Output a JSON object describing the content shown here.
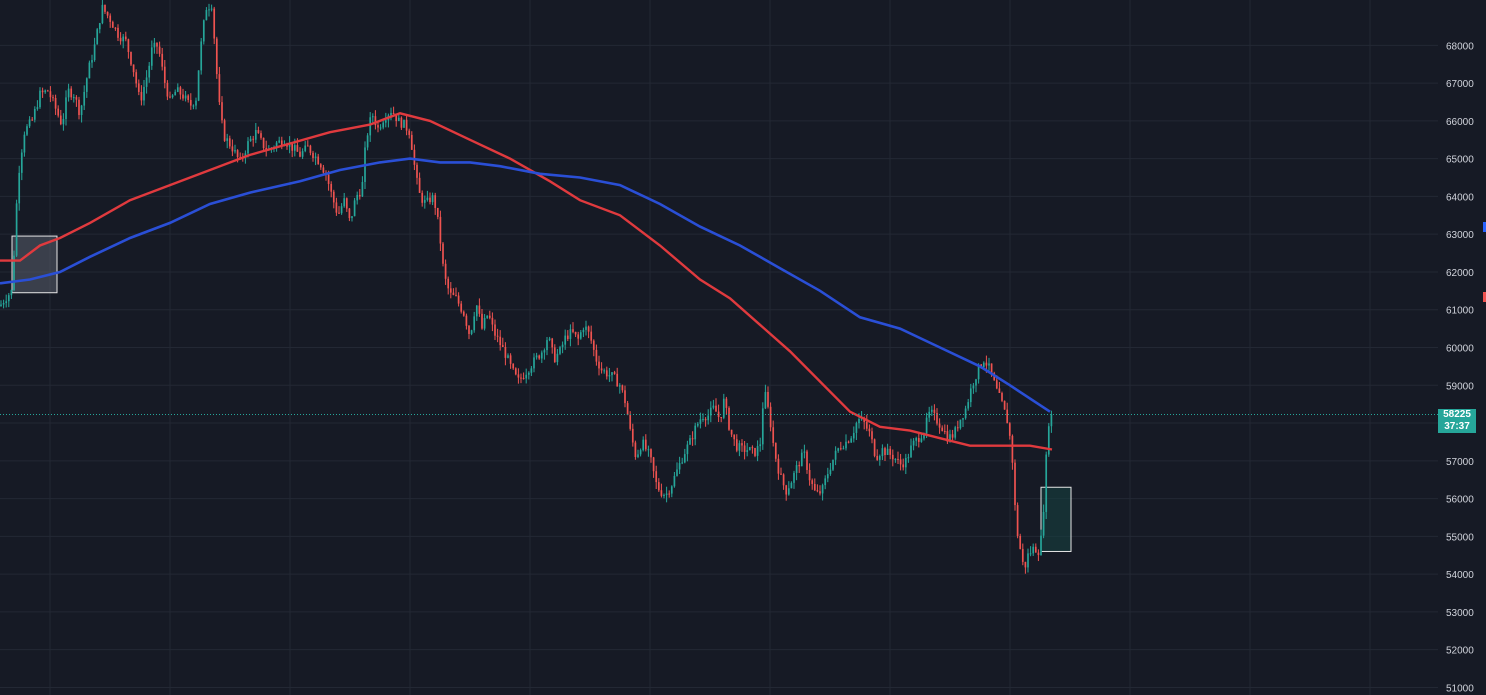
{
  "colors": {
    "background": "#161a25",
    "grid": "#232834",
    "axis_text": "#d1d4dc",
    "candle_up": "#26a69a",
    "candle_down": "#ef5350",
    "ma_fast": "#e03a3e",
    "ma_slow": "#2a4fd6",
    "crosshair": "#26a69a",
    "label_bg": "#26a69a",
    "box_left_fill": "#5a5f6c",
    "box_right_fill": "#17403f",
    "marker_blue": "#2962ff",
    "marker_red": "#ef5350"
  },
  "price_label": {
    "price": "58225",
    "countdown": "37:37"
  },
  "chart_data": {
    "type": "candlestick",
    "ylim": [
      50800,
      69200
    ],
    "y_ticks": [
      "51000",
      "52000",
      "53000",
      "54000",
      "55000",
      "56000",
      "57000",
      "58000",
      "59000",
      "60000",
      "61000",
      "62000",
      "63000",
      "64000",
      "65000",
      "66000",
      "67000",
      "68000"
    ],
    "last_price": 58225,
    "price_path": [
      [
        0,
        61100
      ],
      [
        5,
        61300
      ],
      [
        12,
        61500
      ],
      [
        18,
        64500
      ],
      [
        24,
        65700
      ],
      [
        32,
        66000
      ],
      [
        40,
        66700
      ],
      [
        48,
        66800
      ],
      [
        56,
        66300
      ],
      [
        62,
        65900
      ],
      [
        68,
        66800
      ],
      [
        74,
        66700
      ],
      [
        80,
        66200
      ],
      [
        88,
        67300
      ],
      [
        94,
        67900
      ],
      [
        102,
        69000
      ],
      [
        110,
        68700
      ],
      [
        118,
        68300
      ],
      [
        126,
        68100
      ],
      [
        134,
        67300
      ],
      [
        140,
        66500
      ],
      [
        148,
        67300
      ],
      [
        152,
        67900
      ],
      [
        158,
        68000
      ],
      [
        164,
        67100
      ],
      [
        170,
        66500
      ],
      [
        176,
        66800
      ],
      [
        182,
        66700
      ],
      [
        190,
        66400
      ],
      [
        196,
        66600
      ],
      [
        200,
        67800
      ],
      [
        206,
        69000
      ],
      [
        212,
        69100
      ],
      [
        216,
        67500
      ],
      [
        220,
        66200
      ],
      [
        224,
        65600
      ],
      [
        232,
        65300
      ],
      [
        240,
        64900
      ],
      [
        248,
        65400
      ],
      [
        256,
        65700
      ],
      [
        262,
        65400
      ],
      [
        268,
        65200
      ],
      [
        276,
        65400
      ],
      [
        284,
        65500
      ],
      [
        292,
        65300
      ],
      [
        300,
        65100
      ],
      [
        308,
        65300
      ],
      [
        314,
        65100
      ],
      [
        320,
        64900
      ],
      [
        326,
        64600
      ],
      [
        332,
        64000
      ],
      [
        338,
        63500
      ],
      [
        344,
        63900
      ],
      [
        350,
        63300
      ],
      [
        356,
        64000
      ],
      [
        362,
        64200
      ],
      [
        366,
        65500
      ],
      [
        372,
        66200
      ],
      [
        378,
        65800
      ],
      [
        384,
        66100
      ],
      [
        392,
        66300
      ],
      [
        398,
        66000
      ],
      [
        404,
        65900
      ],
      [
        410,
        65700
      ],
      [
        416,
        64500
      ],
      [
        420,
        64000
      ],
      [
        426,
        63800
      ],
      [
        432,
        64000
      ],
      [
        436,
        63700
      ],
      [
        440,
        62900
      ],
      [
        444,
        61900
      ],
      [
        450,
        61400
      ],
      [
        456,
        61300
      ],
      [
        464,
        60900
      ],
      [
        470,
        60300
      ],
      [
        476,
        61200
      ],
      [
        482,
        60500
      ],
      [
        488,
        60900
      ],
      [
        494,
        60400
      ],
      [
        500,
        60100
      ],
      [
        506,
        59800
      ],
      [
        512,
        59400
      ],
      [
        518,
        59100
      ],
      [
        524,
        59300
      ],
      [
        530,
        59500
      ],
      [
        536,
        59700
      ],
      [
        542,
        59900
      ],
      [
        548,
        60300
      ],
      [
        554,
        59700
      ],
      [
        560,
        59900
      ],
      [
        566,
        60300
      ],
      [
        572,
        60400
      ],
      [
        578,
        60200
      ],
      [
        584,
        60600
      ],
      [
        590,
        60300
      ],
      [
        596,
        59700
      ],
      [
        602,
        59400
      ],
      [
        608,
        59300
      ],
      [
        614,
        59200
      ],
      [
        620,
        59000
      ],
      [
        626,
        58500
      ],
      [
        630,
        57800
      ],
      [
        636,
        57100
      ],
      [
        642,
        57500
      ],
      [
        646,
        57300
      ],
      [
        650,
        57100
      ],
      [
        656,
        56400
      ],
      [
        660,
        56200
      ],
      [
        666,
        56100
      ],
      [
        672,
        56400
      ],
      [
        678,
        56800
      ],
      [
        684,
        57200
      ],
      [
        690,
        57500
      ],
      [
        696,
        57900
      ],
      [
        702,
        58200
      ],
      [
        708,
        58200
      ],
      [
        714,
        58400
      ],
      [
        720,
        58100
      ],
      [
        724,
        58600
      ],
      [
        730,
        57800
      ],
      [
        736,
        57400
      ],
      [
        742,
        57300
      ],
      [
        748,
        57300
      ],
      [
        754,
        57200
      ],
      [
        760,
        57400
      ],
      [
        764,
        58900
      ],
      [
        770,
        58100
      ],
      [
        774,
        57300
      ],
      [
        780,
        56600
      ],
      [
        786,
        56200
      ],
      [
        792,
        56500
      ],
      [
        798,
        56900
      ],
      [
        804,
        57200
      ],
      [
        810,
        56500
      ],
      [
        816,
        56100
      ],
      [
        822,
        56200
      ],
      [
        828,
        56700
      ],
      [
        834,
        57100
      ],
      [
        840,
        57400
      ],
      [
        846,
        57500
      ],
      [
        852,
        57700
      ],
      [
        858,
        58100
      ],
      [
        864,
        58000
      ],
      [
        870,
        57700
      ],
      [
        876,
        57100
      ],
      [
        882,
        57300
      ],
      [
        888,
        57200
      ],
      [
        894,
        57100
      ],
      [
        900,
        56900
      ],
      [
        906,
        57000
      ],
      [
        912,
        57400
      ],
      [
        918,
        57600
      ],
      [
        924,
        57800
      ],
      [
        930,
        58300
      ],
      [
        936,
        58100
      ],
      [
        942,
        57900
      ],
      [
        948,
        57600
      ],
      [
        954,
        57700
      ],
      [
        960,
        58100
      ],
      [
        966,
        58400
      ],
      [
        972,
        59000
      ],
      [
        978,
        59400
      ],
      [
        984,
        59700
      ],
      [
        990,
        59400
      ],
      [
        996,
        58900
      ],
      [
        1002,
        58500
      ],
      [
        1008,
        58000
      ],
      [
        1012,
        57200
      ],
      [
        1016,
        55300
      ],
      [
        1020,
        54700
      ],
      [
        1024,
        54100
      ],
      [
        1028,
        54500
      ],
      [
        1034,
        54700
      ],
      [
        1040,
        54600
      ],
      [
        1044,
        55900
      ],
      [
        1048,
        58000
      ],
      [
        1052,
        58225
      ]
    ],
    "ma_fast": [
      [
        0,
        62300
      ],
      [
        20,
        62300
      ],
      [
        40,
        62700
      ],
      [
        60,
        62900
      ],
      [
        90,
        63300
      ],
      [
        130,
        63900
      ],
      [
        170,
        64300
      ],
      [
        210,
        64700
      ],
      [
        250,
        65100
      ],
      [
        290,
        65400
      ],
      [
        330,
        65700
      ],
      [
        370,
        65900
      ],
      [
        400,
        66200
      ],
      [
        430,
        66000
      ],
      [
        470,
        65500
      ],
      [
        510,
        65000
      ],
      [
        550,
        64400
      ],
      [
        580,
        63900
      ],
      [
        620,
        63500
      ],
      [
        660,
        62700
      ],
      [
        700,
        61800
      ],
      [
        730,
        61300
      ],
      [
        760,
        60600
      ],
      [
        790,
        59900
      ],
      [
        820,
        59100
      ],
      [
        850,
        58300
      ],
      [
        880,
        57900
      ],
      [
        910,
        57800
      ],
      [
        940,
        57600
      ],
      [
        970,
        57400
      ],
      [
        1000,
        57400
      ],
      [
        1030,
        57400
      ],
      [
        1052,
        57300
      ]
    ],
    "ma_slow": [
      [
        0,
        61700
      ],
      [
        30,
        61800
      ],
      [
        60,
        62000
      ],
      [
        90,
        62400
      ],
      [
        130,
        62900
      ],
      [
        170,
        63300
      ],
      [
        210,
        63800
      ],
      [
        250,
        64100
      ],
      [
        300,
        64400
      ],
      [
        340,
        64700
      ],
      [
        380,
        64900
      ],
      [
        410,
        65000
      ],
      [
        440,
        64900
      ],
      [
        470,
        64900
      ],
      [
        500,
        64800
      ],
      [
        540,
        64600
      ],
      [
        580,
        64500
      ],
      [
        620,
        64300
      ],
      [
        660,
        63800
      ],
      [
        700,
        63200
      ],
      [
        740,
        62700
      ],
      [
        780,
        62100
      ],
      [
        820,
        61500
      ],
      [
        860,
        60800
      ],
      [
        900,
        60500
      ],
      [
        940,
        60000
      ],
      [
        980,
        59500
      ],
      [
        1010,
        59000
      ],
      [
        1050,
        58300
      ]
    ],
    "boxes": [
      {
        "x0": 12,
        "x1": 57,
        "y0": 61450,
        "y1": 62950,
        "style": "grey"
      },
      {
        "x0": 1041,
        "x1": 1071,
        "y0": 54600,
        "y1": 56300,
        "style": "teal"
      }
    ]
  }
}
